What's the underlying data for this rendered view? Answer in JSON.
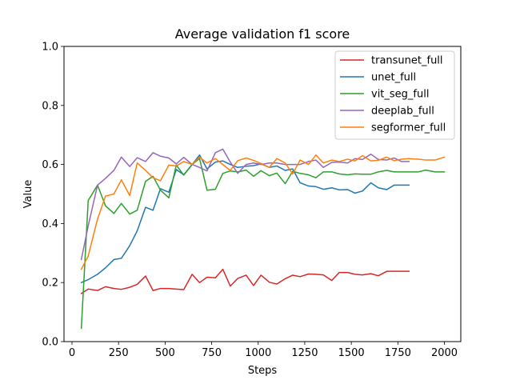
{
  "chart_data": {
    "type": "line",
    "title": "Average validation f1 score",
    "xlabel": "Steps",
    "ylabel": "Value",
    "xlim": [
      -43,
      2088
    ],
    "ylim": [
      0.0,
      1.0
    ],
    "xticks": [
      0,
      250,
      500,
      750,
      1000,
      1250,
      1500,
      1750,
      2000
    ],
    "yticks": [
      0.0,
      0.2,
      0.4,
      0.6,
      0.8,
      1.0
    ],
    "xtick_labels": [
      "0",
      "250",
      "500",
      "750",
      "1000",
      "1250",
      "1500",
      "1750",
      "2000"
    ],
    "ytick_labels": [
      "0.0",
      "0.2",
      "0.4",
      "0.6",
      "0.8",
      "1.0"
    ],
    "grid": false,
    "legend_position": "top-right",
    "series": [
      {
        "name": "transunet_full",
        "color": "#d62728",
        "x": [
          50,
          87,
          137,
          180,
          225,
          265,
          310,
          350,
          395,
          435,
          475,
          520,
          560,
          600,
          645,
          685,
          725,
          770,
          810,
          850,
          890,
          935,
          975,
          1015,
          1060,
          1100,
          1145,
          1185,
          1225,
          1270,
          1310,
          1350,
          1395,
          1435,
          1480,
          1520,
          1560,
          1605,
          1645,
          1690,
          1730,
          1770,
          1810
        ],
        "y": [
          0.163,
          0.178,
          0.173,
          0.186,
          0.18,
          0.177,
          0.184,
          0.194,
          0.222,
          0.173,
          0.18,
          0.18,
          0.178,
          0.176,
          0.228,
          0.2,
          0.218,
          0.216,
          0.245,
          0.188,
          0.214,
          0.225,
          0.19,
          0.225,
          0.201,
          0.195,
          0.213,
          0.225,
          0.22,
          0.229,
          0.228,
          0.226,
          0.207,
          0.234,
          0.234,
          0.228,
          0.226,
          0.23,
          0.223,
          0.238,
          0.238,
          0.238,
          0.238
        ]
      },
      {
        "name": "unet_full",
        "color": "#1f77b4",
        "x": [
          50,
          87,
          137,
          180,
          225,
          265,
          310,
          350,
          395,
          435,
          475,
          520,
          560,
          600,
          645,
          685,
          725,
          770,
          810,
          850,
          890,
          935,
          975,
          1015,
          1060,
          1100,
          1145,
          1185,
          1225,
          1270,
          1310,
          1350,
          1395,
          1435,
          1480,
          1520,
          1560,
          1605,
          1645,
          1690,
          1730,
          1770,
          1810
        ],
        "y": [
          0.2,
          0.21,
          0.228,
          0.25,
          0.278,
          0.282,
          0.325,
          0.375,
          0.455,
          0.445,
          0.518,
          0.506,
          0.583,
          0.565,
          0.6,
          0.632,
          0.585,
          0.608,
          0.612,
          0.6,
          0.59,
          0.594,
          0.596,
          0.602,
          0.59,
          0.595,
          0.58,
          0.585,
          0.538,
          0.527,
          0.525,
          0.516,
          0.521,
          0.514,
          0.515,
          0.503,
          0.51,
          0.538,
          0.521,
          0.515,
          0.53,
          0.53,
          0.53
        ]
      },
      {
        "name": "vit_seg_full",
        "color": "#2ca02c",
        "x": [
          50,
          87,
          137,
          180,
          225,
          265,
          310,
          350,
          395,
          435,
          475,
          520,
          560,
          600,
          645,
          685,
          725,
          770,
          810,
          850,
          890,
          935,
          975,
          1015,
          1060,
          1100,
          1145,
          1185,
          1225,
          1270,
          1310,
          1350,
          1395,
          1435,
          1480,
          1520,
          1560,
          1605,
          1645,
          1690,
          1730,
          1770,
          1810,
          1860,
          1900,
          1950,
          2000
        ],
        "y": [
          0.045,
          0.478,
          0.53,
          0.46,
          0.434,
          0.468,
          0.432,
          0.445,
          0.543,
          0.56,
          0.513,
          0.487,
          0.598,
          0.564,
          0.6,
          0.62,
          0.513,
          0.516,
          0.57,
          0.578,
          0.575,
          0.581,
          0.56,
          0.579,
          0.562,
          0.571,
          0.535,
          0.577,
          0.57,
          0.565,
          0.555,
          0.575,
          0.575,
          0.568,
          0.565,
          0.568,
          0.567,
          0.567,
          0.575,
          0.58,
          0.575,
          0.575,
          0.575,
          0.575,
          0.581,
          0.575,
          0.575
        ]
      },
      {
        "name": "deeplab_full",
        "color": "#9467bd",
        "x": [
          50,
          87,
          137,
          180,
          225,
          265,
          310,
          350,
          395,
          435,
          475,
          520,
          560,
          600,
          645,
          685,
          725,
          770,
          810,
          850,
          890,
          935,
          975,
          1015,
          1060,
          1100,
          1145,
          1185,
          1225,
          1270,
          1310,
          1350,
          1395,
          1435,
          1480,
          1520,
          1560,
          1605,
          1645,
          1690,
          1730,
          1770,
          1810
        ],
        "y": [
          0.278,
          0.392,
          0.53,
          0.553,
          0.58,
          0.625,
          0.593,
          0.623,
          0.61,
          0.64,
          0.628,
          0.622,
          0.602,
          0.624,
          0.6,
          0.59,
          0.578,
          0.64,
          0.652,
          0.608,
          0.57,
          0.6,
          0.605,
          0.6,
          0.605,
          0.605,
          0.6,
          0.6,
          0.6,
          0.61,
          0.615,
          0.59,
          0.607,
          0.608,
          0.605,
          0.62,
          0.617,
          0.635,
          0.617,
          0.615,
          0.622,
          0.61,
          0.61
        ]
      },
      {
        "name": "segformer_full",
        "color": "#ff7f0e",
        "x": [
          50,
          87,
          137,
          180,
          225,
          265,
          310,
          350,
          395,
          435,
          475,
          520,
          560,
          600,
          645,
          685,
          725,
          770,
          810,
          850,
          890,
          935,
          975,
          1015,
          1060,
          1100,
          1145,
          1185,
          1225,
          1270,
          1310,
          1350,
          1395,
          1435,
          1480,
          1520,
          1560,
          1605,
          1645,
          1690,
          1730,
          1770,
          1810,
          1860,
          1900,
          1950,
          2000
        ],
        "y": [
          0.245,
          0.29,
          0.415,
          0.493,
          0.5,
          0.548,
          0.495,
          0.605,
          0.58,
          0.555,
          0.545,
          0.598,
          0.595,
          0.61,
          0.6,
          0.625,
          0.605,
          0.62,
          0.6,
          0.58,
          0.613,
          0.622,
          0.614,
          0.603,
          0.59,
          0.62,
          0.605,
          0.568,
          0.615,
          0.6,
          0.632,
          0.605,
          0.615,
          0.61,
          0.618,
          0.612,
          0.63,
          0.612,
          0.614,
          0.625,
          0.613,
          0.618,
          0.62,
          0.618,
          0.615,
          0.615,
          0.625
        ]
      }
    ]
  }
}
